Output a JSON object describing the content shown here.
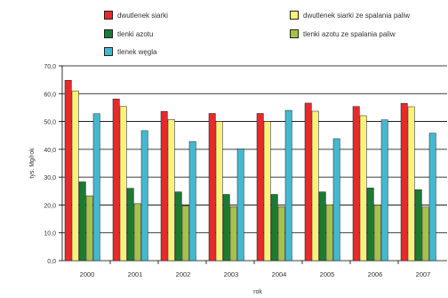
{
  "chart_data": {
    "type": "bar",
    "categories": [
      "2000",
      "2001",
      "2002",
      "2003",
      "2004",
      "2005",
      "2006",
      "2007"
    ],
    "series": [
      {
        "name": "dwutlenek siarki",
        "color": "#e8292b",
        "values": [
          64.8,
          58.1,
          53.6,
          52.9,
          52.9,
          56.6,
          55.4,
          56.5
        ]
      },
      {
        "name": "dwutlenek siarki ze spalania paliw",
        "color": "#f7f27a",
        "values": [
          61.0,
          55.4,
          50.7,
          50.0,
          50.0,
          53.7,
          52.1,
          55.3
        ]
      },
      {
        "name": "tlenki azotu",
        "color": "#1b7a35",
        "values": [
          28.3,
          26.0,
          24.7,
          23.8,
          23.8,
          24.7,
          26.1,
          25.5
        ]
      },
      {
        "name": "tlenki azotu ze spalania paliw",
        "color": "#a6c24b",
        "values": [
          23.3,
          20.5,
          19.7,
          19.4,
          19.4,
          20.1,
          20.0,
          19.3
        ]
      },
      {
        "name": "tlenek węgla",
        "color": "#43b8d2",
        "values": [
          52.8,
          46.7,
          42.8,
          40.2,
          54.0,
          43.8,
          50.6,
          45.8
        ]
      }
    ],
    "legend_labels": [
      "dwutlenek siarki",
      "dwutlenek siarki ze spalania paliw",
      "tlenki azotu",
      "tlenki azotu ze spalania paliw",
      "tlenek węgla"
    ],
    "ylabel": "tys. Mg/rok",
    "xlabel": "rok",
    "ylim": [
      0,
      70
    ],
    "yticks": [
      "0,0",
      "10,0",
      "20,0",
      "30,0",
      "40,0",
      "50,0",
      "60,0",
      "70,0"
    ],
    "grid": true,
    "legend_position": "top"
  }
}
